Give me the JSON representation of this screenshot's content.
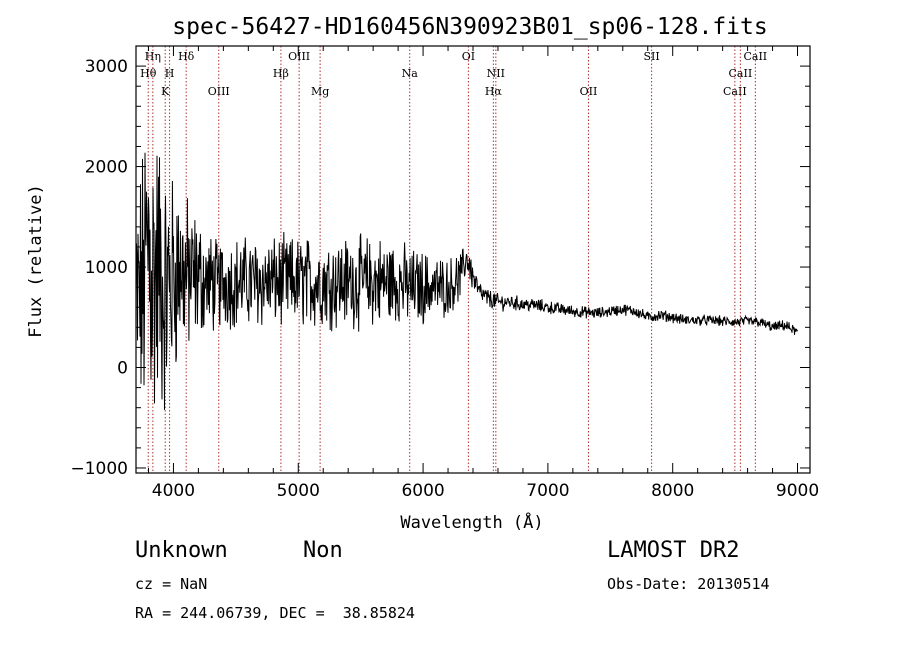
{
  "chart_data": {
    "type": "line",
    "title": "spec-56427-HD160456N390923B01_sp06-128.fits",
    "xlabel": "Wavelength (Å)",
    "ylabel": "Flux (relative)",
    "xlim": [
      3700,
      9100
    ],
    "ylim": [
      -1050,
      3200
    ],
    "xticks": [
      4000,
      5000,
      6000,
      7000,
      8000,
      9000
    ],
    "yticks": [
      -1000,
      0,
      1000,
      2000,
      3000
    ],
    "grid": false,
    "spectral_lines": [
      {
        "label": "Hθ",
        "x": 3798,
        "row": 1
      },
      {
        "label": "Hη",
        "x": 3835,
        "row": 0
      },
      {
        "label": "H",
        "x": 3969,
        "row": 1
      },
      {
        "label": "K",
        "x": 3934,
        "row": 2
      },
      {
        "label": "Hδ",
        "x": 4102,
        "row": 0
      },
      {
        "label": "OIII",
        "x": 4363,
        "row": 2
      },
      {
        "label": "Hβ",
        "x": 4861,
        "row": 1
      },
      {
        "label": "OIII",
        "x": 5007,
        "row": 0
      },
      {
        "label": "Mg",
        "x": 5175,
        "row": 2
      },
      {
        "label": "Na",
        "x": 5893,
        "row": 1
      },
      {
        "label": "OI",
        "x": 6363,
        "row": 0
      },
      {
        "label": "NII",
        "x": 6583,
        "row": 1
      },
      {
        "label": "Hα",
        "x": 6563,
        "row": 2
      },
      {
        "label": "OII",
        "x": 7325,
        "row": 2
      },
      {
        "label": "SII",
        "x": 7831,
        "row": 0
      },
      {
        "label": "CaII",
        "x": 8498,
        "row": 2
      },
      {
        "label": "CaII",
        "x": 8542,
        "row": 1
      },
      {
        "label": "CaII",
        "x": 8662,
        "row": 0
      }
    ],
    "series": [
      {
        "x": [
          3700,
          3760,
          3800,
          3840,
          3880,
          3920,
          3960,
          4000,
          4050,
          4100,
          4150,
          4200,
          4250,
          4300,
          4350,
          4400,
          4500,
          4600,
          4700,
          4800,
          4900,
          5000,
          5100,
          5200,
          5300,
          5400,
          5500,
          5600,
          5700,
          5800,
          5900,
          6000,
          6100,
          6200,
          6300,
          6350,
          6400,
          6450,
          6500,
          6600,
          6700,
          6800,
          6900,
          7000,
          7100,
          7200,
          7300,
          7400,
          7500,
          7600,
          7700,
          7800,
          7900,
          8000,
          8100,
          8200,
          8300,
          8400,
          8500,
          8600,
          8700,
          8800,
          8900,
          9000
        ],
        "values": [
          600,
          800,
          1200,
          900,
          1000,
          700,
          800,
          900,
          1000,
          900,
          900,
          900,
          850,
          850,
          800,
          850,
          850,
          850,
          850,
          850,
          850,
          850,
          850,
          850,
          850,
          850,
          850,
          850,
          850,
          850,
          800,
          800,
          800,
          800,
          900,
          1100,
          900,
          750,
          700,
          650,
          650,
          630,
          620,
          600,
          580,
          560,
          550,
          540,
          560,
          580,
          560,
          500,
          520,
          500,
          470,
          470,
          470,
          460,
          450,
          460,
          450,
          400,
          420,
          350
        ],
        "noise_envelope": [
          1200,
          1500,
          2000,
          1800,
          1500,
          1300,
          1200,
          1100,
          900,
          850,
          750,
          650,
          550,
          500,
          500,
          480,
          470,
          470,
          470,
          470,
          470,
          470,
          470,
          470,
          470,
          470,
          470,
          470,
          470,
          430,
          400,
          380,
          320,
          300,
          250,
          180,
          150,
          120,
          100,
          90,
          80,
          75,
          70,
          70,
          65,
          65,
          60,
          60,
          60,
          60,
          60,
          60,
          60,
          55,
          55,
          55,
          55,
          55,
          55,
          55,
          55,
          55,
          55,
          55
        ]
      }
    ]
  },
  "info": {
    "object_class": "Unknown",
    "subclass": "Non",
    "survey": "LAMOST DR2",
    "redshift": "cz = NaN",
    "obs_date": "Obs-Date: 20130514",
    "coords": "RA = 244.06739, DEC =  38.85824"
  }
}
